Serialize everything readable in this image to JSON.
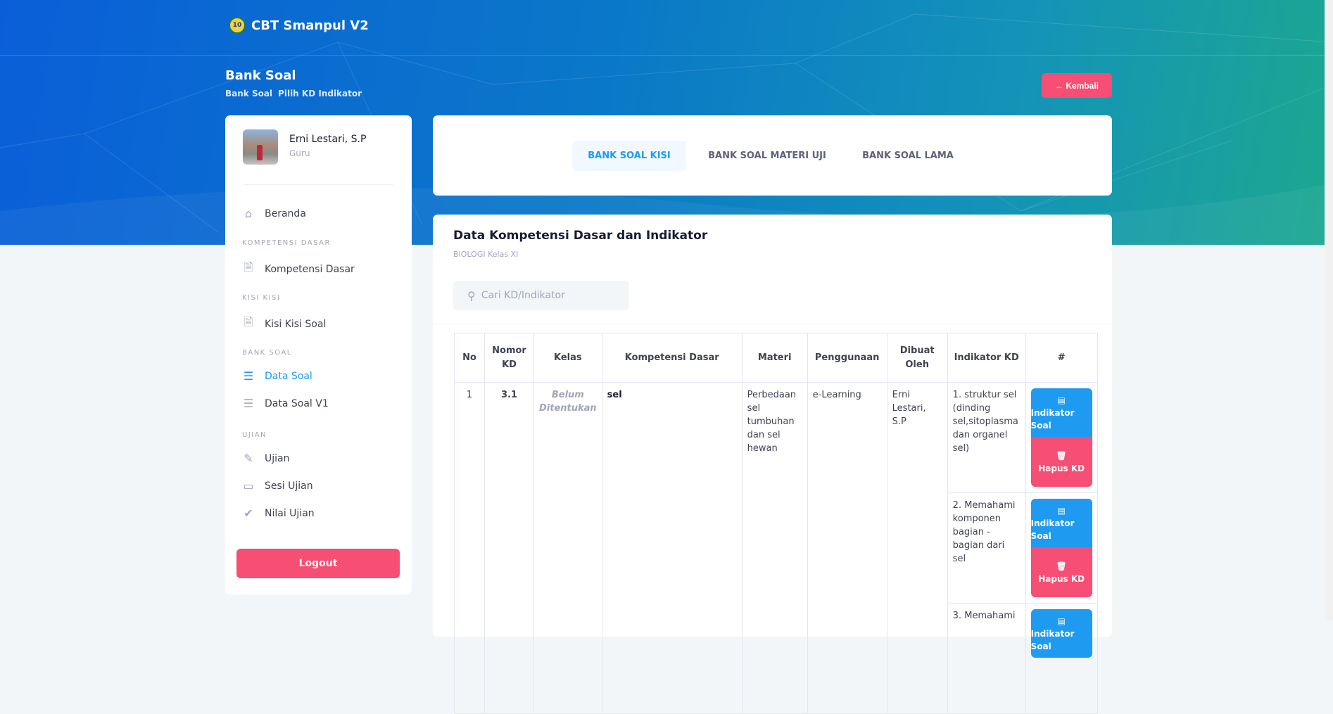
{
  "header": {
    "brand": "CBT Smanpul V2",
    "logo_text": "10",
    "title": "Bank Soal",
    "breadcrumb": [
      "Bank Soal",
      "Pilih KD Indikator"
    ],
    "back_label": "← Kembali"
  },
  "user": {
    "name": "Erni Lestari, S.P",
    "role": "Guru"
  },
  "sidebar": {
    "beranda": "Beranda",
    "sec_kd": "KOMPETENSI DASAR",
    "kd": "Kompetensi Dasar",
    "sec_kisi": "KISI KISI",
    "kisi": "Kisi Kisi Soal",
    "sec_bank": "BANK SOAL",
    "data_soal": "Data Soal",
    "data_soal_v1": "Data Soal V1",
    "sec_ujian": "UJIAN",
    "ujian": "Ujian",
    "sesi": "Sesi Ujian",
    "nilai": "Nilai Ujian",
    "logout": "Logout"
  },
  "tabs": [
    "BANK SOAL KISI",
    "BANK SOAL MATERI UJI",
    "BANK SOAL LAMA"
  ],
  "main": {
    "title": "Data Kompetensi Dasar dan Indikator",
    "subtitle": "BIOLOGI Kelas XI",
    "search_placeholder": "Cari KD/Indikator"
  },
  "table": {
    "headers": [
      "No",
      "Nomor KD",
      "Kelas",
      "Kompetensi Dasar",
      "Materi",
      "Penggunaan",
      "Dibuat Oleh",
      "Indikator KD",
      "#"
    ],
    "row": {
      "no": "1",
      "nomor": "3.1",
      "kelas": "Belum Ditentukan",
      "kd": "sel",
      "materi": "Perbedaan sel tumbuhan dan sel hewan",
      "penggunaan": "e-Learning",
      "oleh": "Erni Lestari, S.P"
    },
    "indikator": [
      "1. struktur sel (dinding sel,sitoplasma dan organel sel)",
      "2. Memahami komponen bagian - bagian dari sel",
      "3. Memahami"
    ],
    "btn_indikator": "Indikator Soal",
    "btn_hapus": "Hapus KD"
  },
  "colors": {
    "primary": "#1e9bf0",
    "danger": "#f64e74"
  }
}
